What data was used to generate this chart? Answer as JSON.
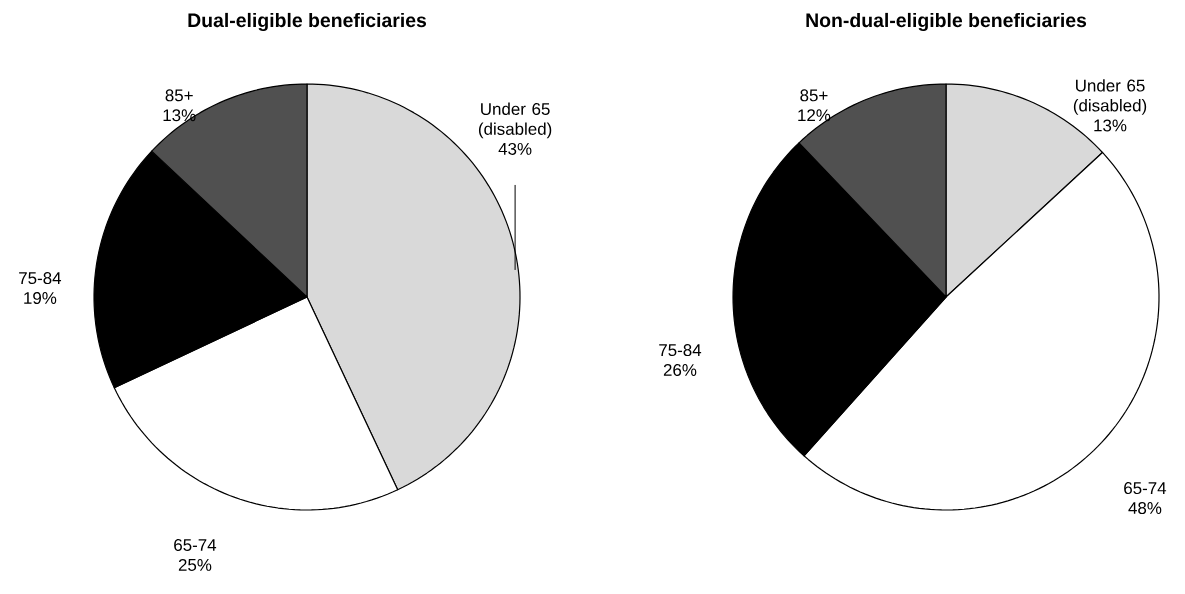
{
  "chart_data": [
    {
      "type": "pie",
      "title": "Dual-eligible beneficiaries",
      "categories": [
        "Under 65 (disabled)",
        "65-74",
        "75-84",
        "85+"
      ],
      "values": [
        43,
        25,
        19,
        13
      ],
      "value_labels": [
        "43%",
        "25%",
        "19%",
        "13%"
      ],
      "colors": [
        "#d9d9d9",
        "#ffffff",
        "#000000",
        "#505050"
      ]
    },
    {
      "type": "pie",
      "title": "Non-dual-eligible beneficiaries",
      "categories": [
        "Under 65 (disabled)",
        "65-74",
        "75-84",
        "85+"
      ],
      "values": [
        13,
        48,
        26,
        12
      ],
      "value_labels": [
        "13%",
        "48%",
        "26%",
        "12%"
      ],
      "colors": [
        "#d9d9d9",
        "#ffffff",
        "#000000",
        "#505050"
      ]
    }
  ]
}
